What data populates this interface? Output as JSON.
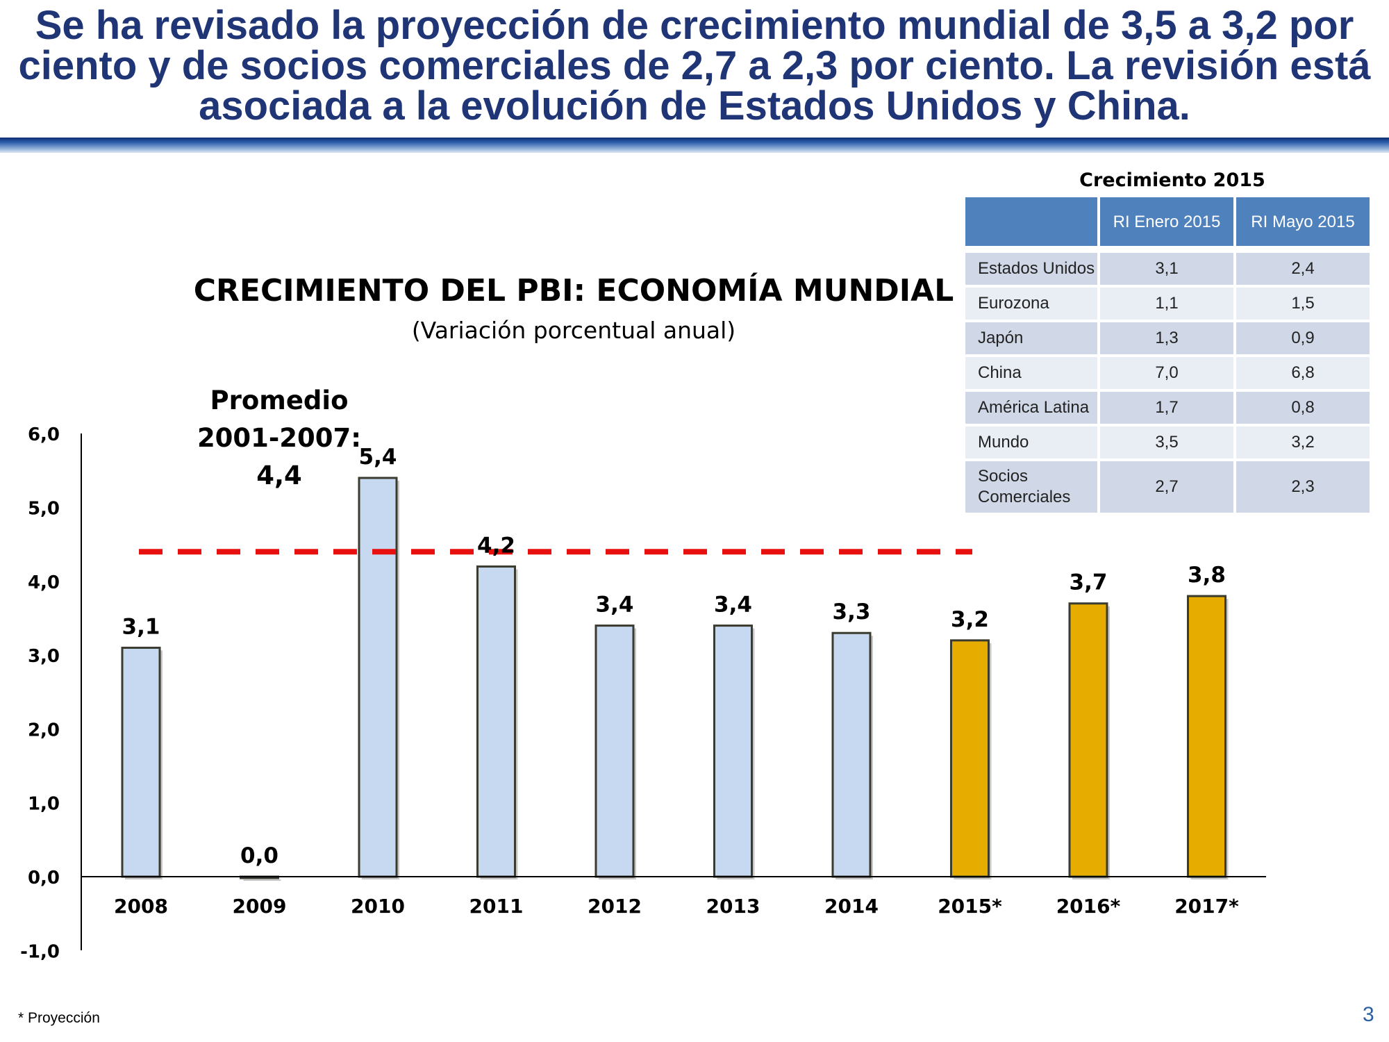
{
  "headline": "Se ha revisado la proyección de crecimiento mundial de 3,5 a 3,2 por ciento y de socios comerciales de 2,7 a 2,3 por ciento. La revisión está asociada a la evolución de Estados Unidos y China.",
  "colors": {
    "headline": "#1f3576",
    "historical_bar": "#c6d9f1",
    "projected_bar": "#e6ac00",
    "average_line": "#e8100f",
    "table_header": "#4f81bd"
  },
  "chart_data": {
    "type": "bar",
    "title": "CRECIMIENTO DEL PBI: ECONOMÍA MUNDIAL",
    "subtitle": "(Variación porcentual anual)",
    "categories": [
      "2008",
      "2009",
      "2010",
      "2011",
      "2012",
      "2013",
      "2014",
      "2015*",
      "2016*",
      "2017*"
    ],
    "values": [
      3.1,
      0.0,
      5.4,
      4.2,
      3.4,
      3.4,
      3.3,
      3.2,
      3.7,
      3.8
    ],
    "data_labels": [
      "3,1",
      "0,0",
      "5,4",
      "4,2",
      "3,4",
      "3,4",
      "3,3",
      "3,2",
      "3,7",
      "3,8"
    ],
    "projected": [
      false,
      false,
      false,
      false,
      false,
      false,
      false,
      true,
      true,
      true
    ],
    "yticks": [
      "6,0",
      "5,0",
      "4,0",
      "3,0",
      "2,0",
      "1,0",
      "0,0",
      "-1,0"
    ],
    "ylim": [
      -1.0,
      6.0
    ],
    "grid": false,
    "average": {
      "value": 4.4,
      "label_lines": [
        "Promedio",
        "2001-2007:",
        "4,4"
      ]
    }
  },
  "table": {
    "caption": "Crecimiento 2015",
    "columns": [
      "RI Enero 2015",
      "RI Mayo 2015"
    ],
    "rows": [
      {
        "label": "Estados Unidos",
        "enero": "3,1",
        "mayo": "2,4"
      },
      {
        "label": "Eurozona",
        "enero": "1,1",
        "mayo": "1,5"
      },
      {
        "label": "Japón",
        "enero": "1,3",
        "mayo": "0,9"
      },
      {
        "label": "China",
        "enero": "7,0",
        "mayo": "6,8"
      },
      {
        "label": "América Latina",
        "enero": "1,7",
        "mayo": "0,8"
      },
      {
        "label": "Mundo",
        "enero": "3,5",
        "mayo": "3,2"
      },
      {
        "label": "Socios Comerciales",
        "enero": "2,7",
        "mayo": "2,3"
      }
    ]
  },
  "footnote": "* Proyección",
  "page_number": "3"
}
